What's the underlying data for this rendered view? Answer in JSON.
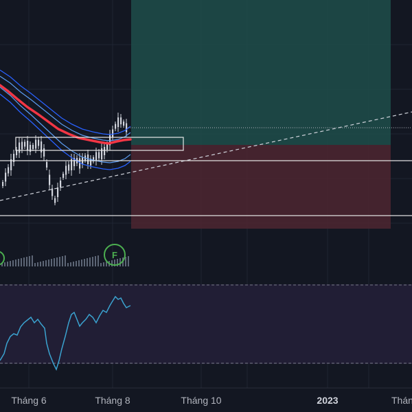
{
  "chart_data": {
    "type": "candlestick",
    "x_axis": {
      "tick_labels": [
        "Tháng 6",
        "Tháng 8",
        "Tháng 10",
        "2023",
        "Tháng"
      ]
    },
    "events": [
      {
        "label": "E",
        "color": "#4caf50"
      },
      {
        "label": "F",
        "color": "#4caf50"
      }
    ],
    "position_tool": {
      "profit_color": "#1e4d4a",
      "loss_color": "#4a2530"
    },
    "series": [
      {
        "name": "",
        "kind": "moving-average",
        "color": "#f23645"
      },
      {
        "name": "",
        "kind": "channel",
        "color": "#2962ff"
      },
      {
        "name": "",
        "kind": "oscillator",
        "color": "#3ba3d0"
      }
    ],
    "colors": {
      "background": "#131722",
      "grid": "#1f2433",
      "oscillator_pane": "#211e35",
      "up_candle": "#d1d4dc",
      "volume": "#5d6676",
      "trendline": "#d1d4dc"
    }
  }
}
